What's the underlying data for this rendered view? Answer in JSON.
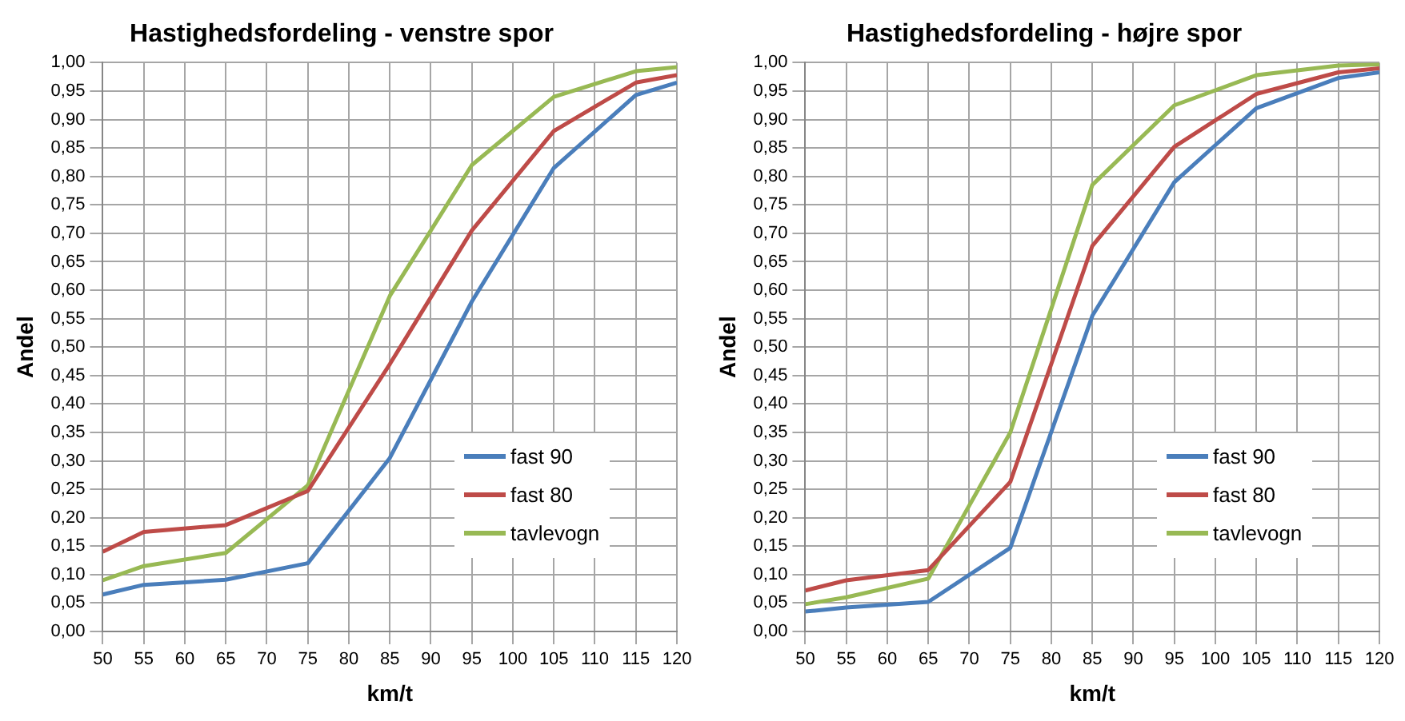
{
  "chart_data": [
    {
      "type": "line",
      "title": "Hastighedsfordeling - venstre spor",
      "xlabel": "km/t",
      "ylabel": "Andel",
      "x": [
        50,
        55,
        65,
        75,
        85,
        95,
        105,
        115,
        120
      ],
      "xlim": [
        50,
        120
      ],
      "xticks": [
        50,
        55,
        60,
        65,
        70,
        75,
        80,
        85,
        90,
        95,
        100,
        105,
        110,
        115,
        120
      ],
      "ylim": [
        0,
        1
      ],
      "yticks": [
        {
          "value": 0,
          "label": "0,00"
        },
        {
          "value": 0.05,
          "label": "0,05"
        },
        {
          "value": 0.1,
          "label": "0,10"
        },
        {
          "value": 0.15,
          "label": "0,15"
        },
        {
          "value": 0.2,
          "label": "0,20"
        },
        {
          "value": 0.25,
          "label": "0,25"
        },
        {
          "value": 0.3,
          "label": "0,30"
        },
        {
          "value": 0.35,
          "label": "0,35"
        },
        {
          "value": 0.4,
          "label": "0,40"
        },
        {
          "value": 0.45,
          "label": "0,45"
        },
        {
          "value": 0.5,
          "label": "0,50"
        },
        {
          "value": 0.55,
          "label": "0,55"
        },
        {
          "value": 0.6,
          "label": "0,60"
        },
        {
          "value": 0.65,
          "label": "0,65"
        },
        {
          "value": 0.7,
          "label": "0,70"
        },
        {
          "value": 0.75,
          "label": "0,75"
        },
        {
          "value": 0.8,
          "label": "0,80"
        },
        {
          "value": 0.85,
          "label": "0,85"
        },
        {
          "value": 0.9,
          "label": "0,90"
        },
        {
          "value": 0.95,
          "label": "0,95"
        },
        {
          "value": 1,
          "label": "1,00"
        }
      ],
      "grid": true,
      "legend": "right",
      "marker": "none",
      "line_style": "solid",
      "series": [
        {
          "name": "fast 90",
          "color": "#4a7ebb",
          "values": [
            0.065,
            0.082,
            0.091,
            0.12,
            0.305,
            0.58,
            0.815,
            0.943,
            0.965
          ]
        },
        {
          "name": "fast 80",
          "color": "#be4b48",
          "values": [
            0.14,
            0.175,
            0.187,
            0.247,
            0.47,
            0.705,
            0.88,
            0.965,
            0.978
          ]
        },
        {
          "name": "tavlevogn",
          "color": "#98b954",
          "values": [
            0.09,
            0.115,
            0.138,
            0.257,
            0.59,
            0.82,
            0.94,
            0.985,
            0.992
          ]
        }
      ]
    },
    {
      "type": "line",
      "title": "Hastighedsfordeling - højre spor",
      "xlabel": "km/t",
      "ylabel": "Andel",
      "x": [
        50,
        55,
        65,
        75,
        85,
        95,
        105,
        115,
        120
      ],
      "xlim": [
        50,
        120
      ],
      "xticks": [
        50,
        55,
        60,
        65,
        70,
        75,
        80,
        85,
        90,
        95,
        100,
        105,
        110,
        115,
        120
      ],
      "ylim": [
        0,
        1
      ],
      "yticks": [
        {
          "value": 0,
          "label": "0,00"
        },
        {
          "value": 0.05,
          "label": "0,05"
        },
        {
          "value": 0.1,
          "label": "0,10"
        },
        {
          "value": 0.15,
          "label": "0,15"
        },
        {
          "value": 0.2,
          "label": "0,20"
        },
        {
          "value": 0.25,
          "label": "0,25"
        },
        {
          "value": 0.3,
          "label": "0,30"
        },
        {
          "value": 0.35,
          "label": "0,35"
        },
        {
          "value": 0.4,
          "label": "0,40"
        },
        {
          "value": 0.45,
          "label": "0,45"
        },
        {
          "value": 0.5,
          "label": "0,50"
        },
        {
          "value": 0.55,
          "label": "0,55"
        },
        {
          "value": 0.6,
          "label": "0,60"
        },
        {
          "value": 0.65,
          "label": "0,65"
        },
        {
          "value": 0.7,
          "label": "0,70"
        },
        {
          "value": 0.75,
          "label": "0,75"
        },
        {
          "value": 0.8,
          "label": "0,80"
        },
        {
          "value": 0.85,
          "label": "0,85"
        },
        {
          "value": 0.9,
          "label": "0,90"
        },
        {
          "value": 0.95,
          "label": "0,95"
        },
        {
          "value": 1,
          "label": "1,00"
        }
      ],
      "grid": true,
      "legend": "right",
      "marker": "none",
      "line_style": "solid",
      "series": [
        {
          "name": "fast 90",
          "color": "#4a7ebb",
          "values": [
            0.035,
            0.042,
            0.052,
            0.147,
            0.555,
            0.79,
            0.92,
            0.973,
            0.983
          ]
        },
        {
          "name": "fast 80",
          "color": "#be4b48",
          "values": [
            0.072,
            0.09,
            0.108,
            0.263,
            0.678,
            0.852,
            0.945,
            0.983,
            0.99
          ]
        },
        {
          "name": "tavlevogn",
          "color": "#98b954",
          "values": [
            0.048,
            0.06,
            0.093,
            0.35,
            0.785,
            0.925,
            0.978,
            0.995,
            0.997
          ]
        }
      ]
    }
  ]
}
